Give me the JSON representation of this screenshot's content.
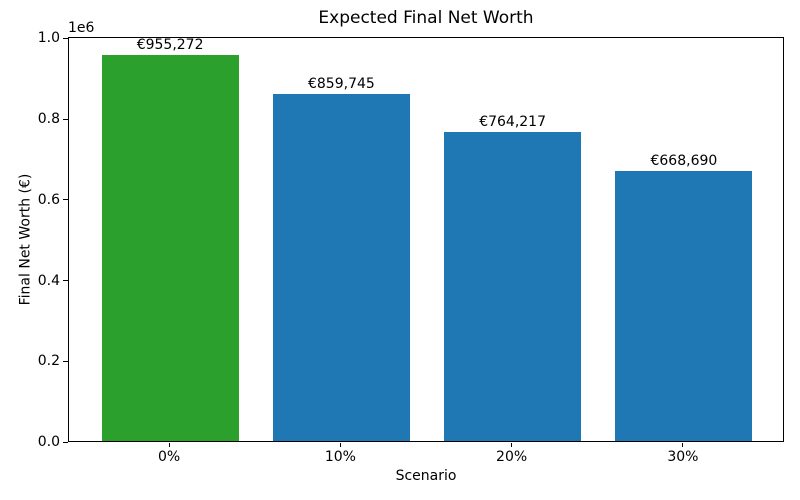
{
  "chart_data": {
    "type": "bar",
    "title": "Expected Final Net Worth",
    "xlabel": "Scenario",
    "ylabel": "Final Net Worth (€)",
    "y_offset_text": "1e6",
    "categories": [
      "0%",
      "10%",
      "20%",
      "30%"
    ],
    "values": [
      955272,
      859745,
      764217,
      668690
    ],
    "value_labels": [
      "€955,272",
      "€859,745",
      "€764,217",
      "€668,690"
    ],
    "bar_colors": [
      "#2ca02c",
      "#1f77b4",
      "#1f77b4",
      "#1f77b4"
    ],
    "ylim": [
      0,
      1003036
    ],
    "yticks": [
      0,
      200000,
      400000,
      600000,
      800000,
      1000000
    ],
    "ytick_labels": [
      "0.0",
      "0.2",
      "0.4",
      "0.6",
      "0.8",
      "1.0"
    ],
    "grid": false,
    "legend": null,
    "spine_color": "#000000",
    "background_color": "#ffffff"
  }
}
